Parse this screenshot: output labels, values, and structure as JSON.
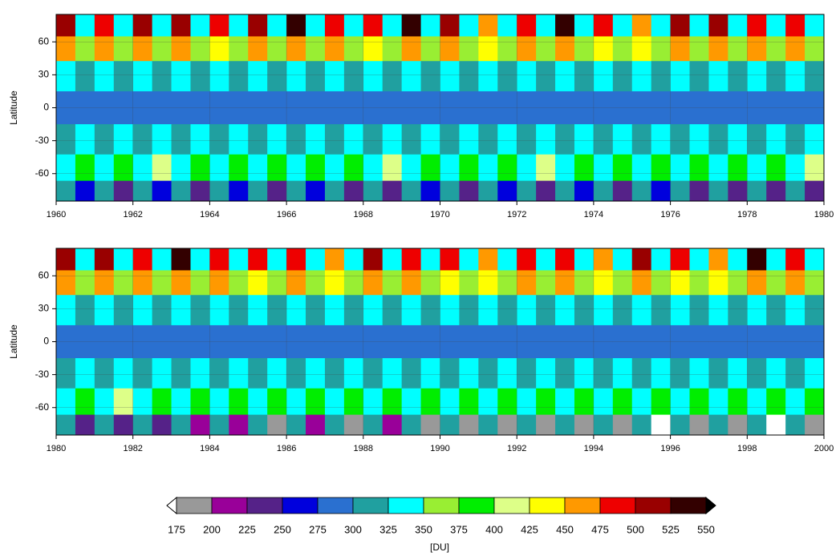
{
  "chart_data": [
    {
      "type": "heatmap",
      "ylabel": "Latitude",
      "x": [
        1960.25,
        1960.75,
        1961.25,
        1961.75,
        1962.25,
        1962.75,
        1963.25,
        1963.75,
        1964.25,
        1964.75,
        1965.25,
        1965.75,
        1966.25,
        1966.75,
        1967.25,
        1967.75,
        1968.25,
        1968.75,
        1969.25,
        1969.75,
        1970.25,
        1970.75,
        1971.25,
        1971.75,
        1972.25,
        1972.75,
        1973.25,
        1973.75,
        1974.25,
        1974.75,
        1975.25,
        1975.75,
        1976.25,
        1976.75,
        1977.25,
        1977.75,
        1978.25,
        1978.75,
        1979.25,
        1979.75
      ],
      "y": [
        75,
        55,
        30,
        0,
        -30,
        -55,
        -78
      ],
      "z": [
        [
          510,
          340,
          490,
          345,
          520,
          335,
          500,
          340,
          480,
          345,
          505,
          340,
          535,
          335,
          495,
          340,
          485,
          345,
          540,
          335,
          510,
          340,
          470,
          345,
          490,
          340,
          530,
          335,
          480,
          340,
          470,
          345,
          500,
          340,
          520,
          335,
          480,
          340,
          490,
          345
        ],
        [
          460,
          365,
          450,
          360,
          465,
          360,
          455,
          365,
          445,
          360,
          455,
          365,
          470,
          360,
          450,
          365,
          445,
          360,
          470,
          365,
          460,
          360,
          440,
          365,
          450,
          360,
          465,
          365,
          445,
          360,
          440,
          365,
          455,
          360,
          460,
          365,
          450,
          360,
          455,
          365
        ],
        [
          345,
          320,
          340,
          320,
          345,
          315,
          340,
          320,
          340,
          320,
          345,
          320,
          345,
          315,
          340,
          320,
          340,
          320,
          345,
          315,
          345,
          320,
          340,
          320,
          340,
          320,
          345,
          320,
          340,
          320,
          340,
          320,
          345,
          320,
          345,
          315,
          340,
          320,
          340,
          320
        ],
        [
          285,
          290,
          285,
          290,
          285,
          290,
          285,
          290,
          285,
          290,
          285,
          290,
          285,
          290,
          285,
          290,
          285,
          290,
          285,
          290,
          285,
          290,
          285,
          290,
          285,
          290,
          285,
          290,
          285,
          290,
          285,
          290,
          285,
          290,
          285,
          290,
          285,
          290,
          285,
          290
        ],
        [
          310,
          330,
          310,
          330,
          310,
          330,
          310,
          330,
          310,
          330,
          310,
          330,
          310,
          330,
          310,
          330,
          310,
          330,
          310,
          330,
          310,
          330,
          310,
          330,
          310,
          330,
          310,
          330,
          310,
          330,
          310,
          330,
          310,
          330,
          310,
          330,
          310,
          330,
          310,
          330
        ],
        [
          345,
          390,
          345,
          395,
          345,
          400,
          345,
          390,
          345,
          395,
          345,
          390,
          345,
          395,
          345,
          390,
          345,
          400,
          345,
          390,
          345,
          395,
          345,
          390,
          345,
          400,
          345,
          390,
          345,
          395,
          345,
          390,
          345,
          390,
          345,
          395,
          345,
          390,
          345,
          400
        ],
        [
          300,
          250,
          300,
          245,
          300,
          250,
          300,
          240,
          300,
          250,
          300,
          245,
          300,
          250,
          300,
          245,
          300,
          240,
          300,
          250,
          300,
          245,
          300,
          250,
          300,
          240,
          300,
          250,
          300,
          245,
          300,
          250,
          300,
          240,
          300,
          245,
          300,
          235,
          300,
          245
        ]
      ],
      "xlim": [
        1960,
        1980
      ],
      "xticks": [
        1960,
        1962,
        1964,
        1966,
        1968,
        1970,
        1972,
        1974,
        1976,
        1978,
        1980
      ],
      "ylim": [
        -85,
        85
      ],
      "yticks": [
        -60,
        -30,
        0,
        30,
        60
      ],
      "grid": true
    },
    {
      "type": "heatmap",
      "ylabel": "Latitude",
      "x": [
        1980.25,
        1980.75,
        1981.25,
        1981.75,
        1982.25,
        1982.75,
        1983.25,
        1983.75,
        1984.25,
        1984.75,
        1985.25,
        1985.75,
        1986.25,
        1986.75,
        1987.25,
        1987.75,
        1988.25,
        1988.75,
        1989.25,
        1989.75,
        1990.25,
        1990.75,
        1991.25,
        1991.75,
        1992.25,
        1992.75,
        1993.25,
        1993.75,
        1994.25,
        1994.75,
        1995.25,
        1995.75,
        1996.25,
        1996.75,
        1997.25,
        1997.75,
        1998.25,
        1998.75,
        1999.25,
        1999.75
      ],
      "y": [
        75,
        55,
        30,
        0,
        -30,
        -55,
        -78
      ],
      "z": [
        [
          500,
          340,
          515,
          345,
          490,
          340,
          540,
          335,
          495,
          345,
          480,
          340,
          485,
          340,
          470,
          345,
          520,
          340,
          490,
          340,
          480,
          345,
          470,
          340,
          490,
          345,
          485,
          340,
          470,
          345,
          510,
          340,
          480,
          345,
          470,
          340,
          530,
          345,
          490,
          340
        ],
        [
          455,
          360,
          460,
          365,
          450,
          360,
          470,
          360,
          455,
          365,
          445,
          360,
          450,
          365,
          440,
          360,
          460,
          365,
          450,
          360,
          445,
          365,
          440,
          360,
          450,
          365,
          450,
          360,
          440,
          365,
          455,
          360,
          445,
          365,
          440,
          360,
          465,
          365,
          450,
          360
        ],
        [
          340,
          320,
          345,
          320,
          340,
          320,
          345,
          315,
          340,
          320,
          340,
          320,
          340,
          320,
          340,
          320,
          345,
          320,
          340,
          320,
          340,
          320,
          340,
          320,
          340,
          320,
          340,
          320,
          340,
          320,
          345,
          320,
          340,
          320,
          340,
          320,
          345,
          320,
          340,
          320
        ],
        [
          285,
          290,
          285,
          290,
          285,
          290,
          280,
          290,
          285,
          290,
          285,
          290,
          285,
          290,
          285,
          290,
          285,
          290,
          285,
          290,
          285,
          290,
          285,
          290,
          280,
          290,
          285,
          290,
          285,
          290,
          285,
          290,
          285,
          290,
          285,
          290,
          280,
          290,
          285,
          290
        ],
        [
          310,
          330,
          310,
          330,
          310,
          330,
          310,
          330,
          310,
          330,
          310,
          330,
          310,
          330,
          310,
          330,
          310,
          330,
          310,
          330,
          310,
          330,
          310,
          330,
          310,
          330,
          310,
          330,
          310,
          330,
          310,
          330,
          310,
          330,
          310,
          330,
          310,
          330,
          310,
          330
        ],
        [
          345,
          390,
          345,
          400,
          345,
          390,
          345,
          395,
          345,
          390,
          345,
          395,
          345,
          390,
          345,
          395,
          345,
          390,
          345,
          390,
          345,
          395,
          345,
          390,
          345,
          390,
          345,
          395,
          345,
          390,
          345,
          390,
          345,
          395,
          345,
          390,
          345,
          395,
          345,
          390
        ],
        [
          300,
          245,
          300,
          235,
          300,
          225,
          300,
          215,
          300,
          205,
          300,
          195,
          300,
          205,
          300,
          180,
          300,
          210,
          300,
          185,
          300,
          185,
          300,
          185,
          300,
          180,
          300,
          175,
          300,
          180,
          300,
          170,
          300,
          180,
          300,
          180,
          300,
          170,
          300,
          180
        ]
      ],
      "xlim": [
        1980,
        2000
      ],
      "xticks": [
        1980,
        1982,
        1984,
        1986,
        1988,
        1990,
        1992,
        1994,
        1996,
        1998,
        2000
      ],
      "ylim": [
        -85,
        85
      ],
      "yticks": [
        -60,
        -30,
        0,
        30,
        60
      ],
      "grid": true
    }
  ],
  "colorbar": {
    "label": "[DU]",
    "levels": [
      175,
      200,
      225,
      250,
      275,
      300,
      325,
      350,
      375,
      400,
      425,
      450,
      475,
      500,
      525,
      550
    ],
    "colors": [
      "#ffffff",
      "#999999",
      "#990099",
      "#552288",
      "#0000dd",
      "#2a70d0",
      "#20a0a0",
      "#00ffff",
      "#99ee33",
      "#00ee00",
      "#ddff88",
      "#ffff00",
      "#ff9900",
      "#ee0000",
      "#990000",
      "#330000",
      "#000000"
    ]
  }
}
